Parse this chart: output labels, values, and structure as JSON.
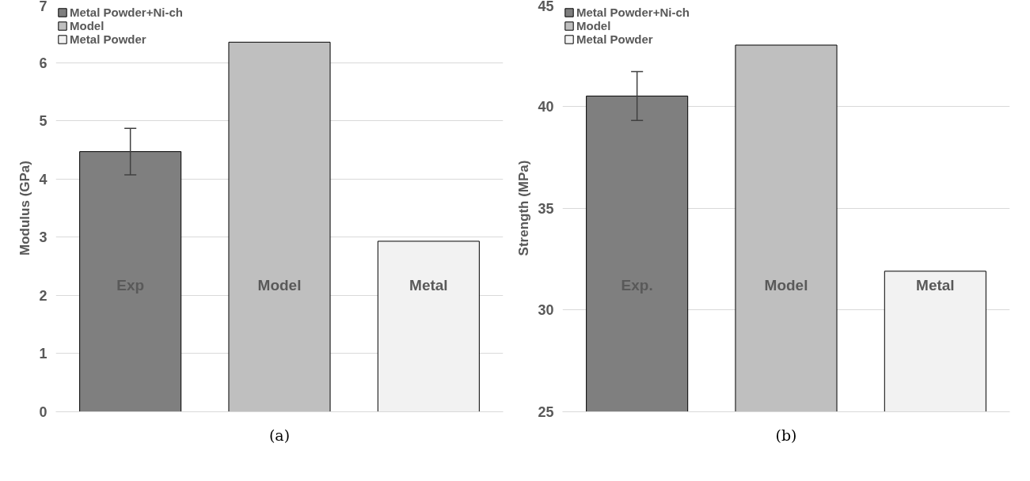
{
  "chart_data": [
    {
      "type": "bar",
      "ylabel": "Modulus (GPa)",
      "categories": [
        "Exp",
        "Model",
        "Metal"
      ],
      "ylim": [
        0,
        7
      ],
      "yticks": [
        0,
        1,
        2,
        3,
        4,
        5,
        6,
        7
      ],
      "grid": "y",
      "legend": "top left",
      "tick_labels": "y",
      "series": [
        {
          "name": "Metal Powder+Ni-ch",
          "color": "#7f7f7f",
          "values": [
            4.47,
            null,
            null
          ],
          "errors": [
            0.4,
            null,
            null
          ]
        },
        {
          "name": "Model",
          "color": "#bfbfbf",
          "values": [
            null,
            6.35,
            null
          ]
        },
        {
          "name": "Metal Powder",
          "color": "#f2f2f2",
          "values": [
            null,
            null,
            2.93
          ]
        }
      ],
      "annotations": [
        "(a)"
      ]
    },
    {
      "type": "bar",
      "ylabel": "Strength (MPa)",
      "categories": [
        "Exp.",
        "Model",
        "Metal"
      ],
      "ylim": [
        25,
        45
      ],
      "yticks": [
        25,
        30,
        35,
        40,
        45
      ],
      "grid": "y",
      "legend": "top left",
      "tick_labels": "y",
      "series": [
        {
          "name": "Metal Powder+Ni-ch",
          "color": "#7f7f7f",
          "values": [
            40.5,
            null,
            null
          ],
          "errors": [
            1.2,
            null,
            null
          ]
        },
        {
          "name": "Model",
          "color": "#bfbfbf",
          "values": [
            null,
            43.0,
            null
          ]
        },
        {
          "name": "Metal Powder",
          "color": "#f2f2f2",
          "values": [
            null,
            null,
            31.9
          ]
        }
      ],
      "annotations": [
        "(b)"
      ]
    }
  ]
}
